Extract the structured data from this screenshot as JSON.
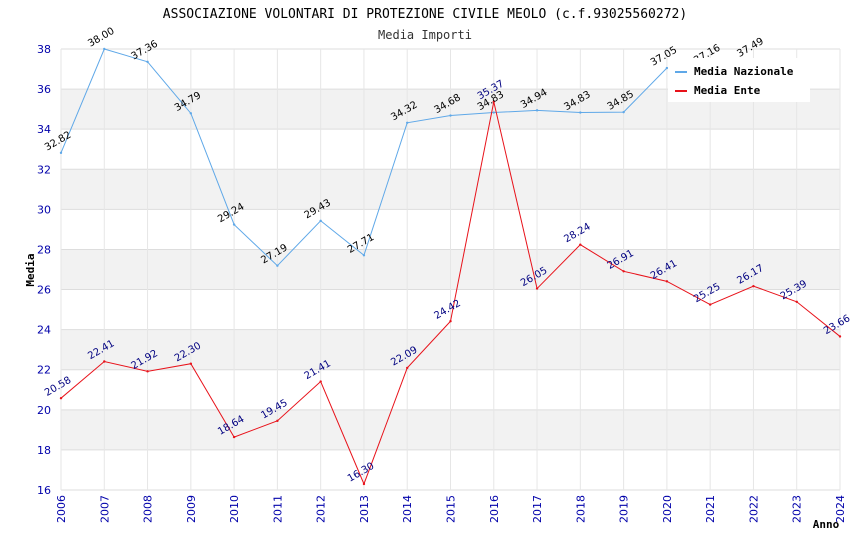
{
  "chart_data": {
    "type": "line",
    "title": "ASSOCIAZIONE VOLONTARI DI PROTEZIONE CIVILE MEOLO (c.f.93025560272)",
    "subtitle": "Media Importi",
    "xlabel": "Anno",
    "ylabel": "Media",
    "ylim": [
      16,
      38
    ],
    "yticks": [
      "16",
      "18",
      "20",
      "22",
      "24",
      "26",
      "28",
      "30",
      "32",
      "34",
      "36",
      "38"
    ],
    "categories": [
      "2006",
      "2007",
      "2008",
      "2009",
      "2010",
      "2011",
      "2012",
      "2013",
      "2014",
      "2015",
      "2016",
      "2017",
      "2018",
      "2019",
      "2020",
      "2021",
      "2022",
      "2023",
      "2024"
    ],
    "legend_position": "top-right",
    "series": [
      {
        "name": "Media Nazionale",
        "color": "#5fa8e8",
        "values": [
          32.82,
          38.0,
          37.36,
          34.79,
          29.24,
          27.19,
          29.43,
          27.71,
          34.32,
          34.68,
          34.83,
          34.94,
          34.83,
          34.85,
          37.05,
          37.16,
          37.49,
          null,
          null
        ],
        "labels": [
          "32.82",
          "38.00",
          "37.36",
          "34.79",
          "29.24",
          "27.19",
          "29.43",
          "27.71",
          "34.32",
          "34.68",
          "34.83",
          "34.94",
          "34.83",
          "34.85",
          "37.05",
          "37.16",
          "37.49",
          "",
          ""
        ]
      },
      {
        "name": "Media Ente",
        "color": "#e8121a",
        "values": [
          20.58,
          22.41,
          21.92,
          22.3,
          18.64,
          19.45,
          21.41,
          16.3,
          22.09,
          24.42,
          35.37,
          26.05,
          28.24,
          26.91,
          26.41,
          25.25,
          26.17,
          25.39,
          23.66
        ],
        "labels": [
          "20.58",
          "22.41",
          "21.92",
          "22.30",
          "18.64",
          "19.45",
          "21.41",
          "16.30",
          "22.09",
          "24.42",
          "35.37",
          "26.05",
          "28.24",
          "26.91",
          "26.41",
          "25.25",
          "26.17",
          "25.39",
          "23.66"
        ]
      }
    ]
  }
}
